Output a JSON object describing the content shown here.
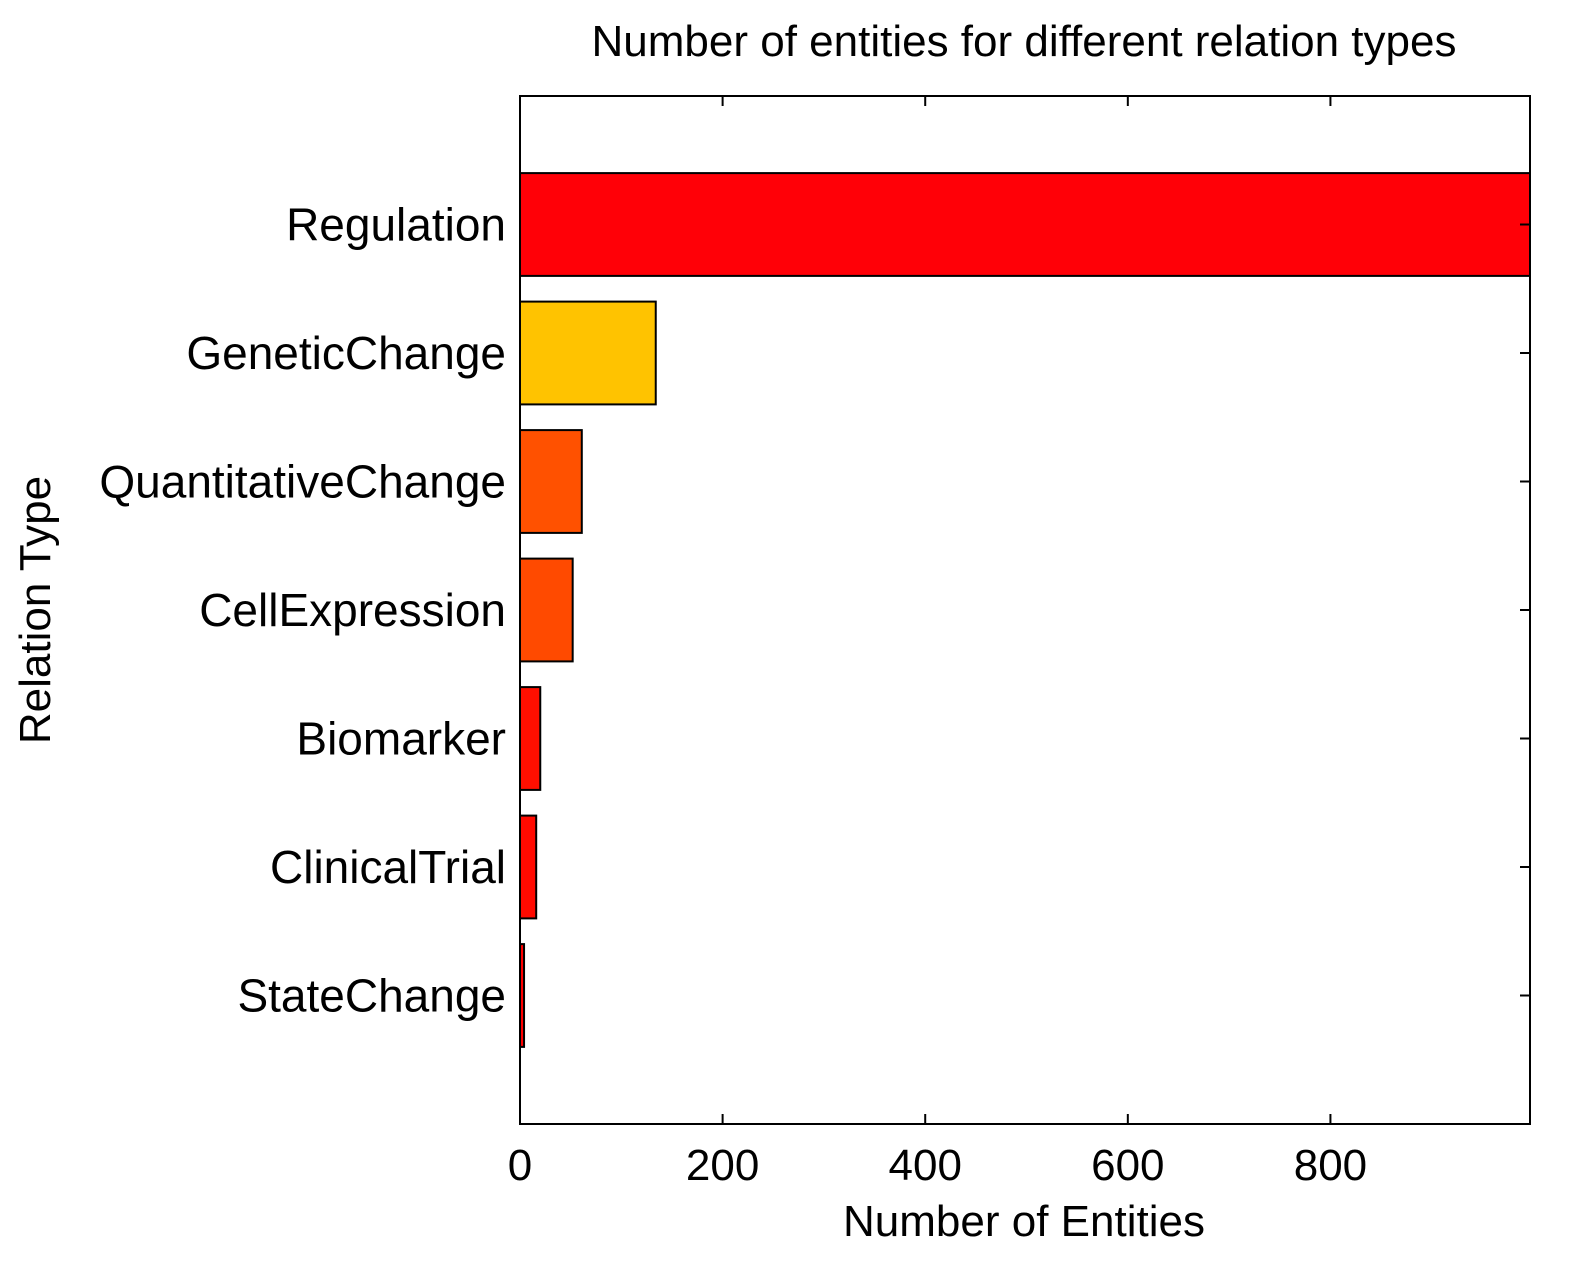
{
  "chart_data": {
    "type": "bar",
    "orientation": "horizontal",
    "title": "Number of entities for different relation types",
    "xlabel": "Number of Entities",
    "ylabel": "Relation Type",
    "categories": [
      "Regulation",
      "GeneticChange",
      "QuantitativeChange",
      "CellExpression",
      "Biomarker",
      "ClinicalTrial",
      "StateChange"
    ],
    "values": [
      997,
      134,
      61,
      52,
      20,
      16,
      4
    ],
    "colors": [
      "#ff0007",
      "#ffc300",
      "#ff5100",
      "#ff4a00",
      "#ff0f00",
      "#ff0a00",
      "#ff0000"
    ],
    "xlim": [
      0,
      997
    ],
    "xticks": [
      0,
      200,
      400,
      600,
      800
    ],
    "xtick_labels": [
      "0",
      "200",
      "400",
      "600",
      "800"
    ],
    "grid": false,
    "legend": false
  }
}
